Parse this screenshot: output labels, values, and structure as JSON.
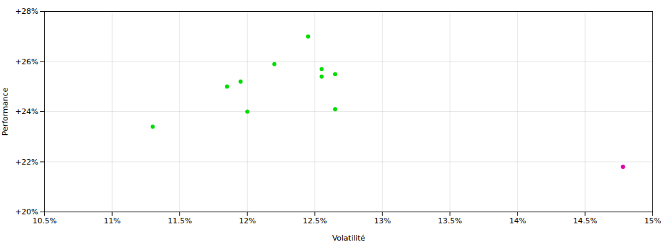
{
  "chart_data": {
    "type": "scatter",
    "xlabel": "Volatilité",
    "ylabel": "Performance",
    "xlim": [
      0.105,
      0.15
    ],
    "ylim": [
      0.2,
      0.28
    ],
    "xticks": [
      {
        "value": 0.105,
        "label": "10.5%"
      },
      {
        "value": 0.11,
        "label": "11%"
      },
      {
        "value": 0.115,
        "label": "11.5%"
      },
      {
        "value": 0.12,
        "label": "12%"
      },
      {
        "value": 0.125,
        "label": "12.5%"
      },
      {
        "value": 0.13,
        "label": "13%"
      },
      {
        "value": 0.135,
        "label": "13.5%"
      },
      {
        "value": 0.14,
        "label": "14%"
      },
      {
        "value": 0.145,
        "label": "14.5%"
      },
      {
        "value": 0.15,
        "label": "15%"
      }
    ],
    "yticks": [
      {
        "value": 0.2,
        "label": "+20%"
      },
      {
        "value": 0.22,
        "label": "+22%"
      },
      {
        "value": 0.24,
        "label": "+24%"
      },
      {
        "value": 0.26,
        "label": "+26%"
      },
      {
        "value": 0.28,
        "label": "+28%"
      }
    ],
    "grid": true,
    "series": [
      {
        "color": "#00dd00",
        "marker": "circle",
        "x": [
          0.113,
          0.1185,
          0.1195,
          0.122,
          0.1245,
          0.1255,
          0.1265,
          0.1265,
          0.12,
          0.1255
        ],
        "values": [
          0.234,
          0.25,
          0.252,
          0.259,
          0.27,
          0.257,
          0.255,
          0.241,
          0.24,
          0.254
        ]
      },
      {
        "color": "#dd00aa",
        "marker": "circle",
        "x": [
          0.1478
        ],
        "values": [
          0.218
        ]
      }
    ]
  }
}
